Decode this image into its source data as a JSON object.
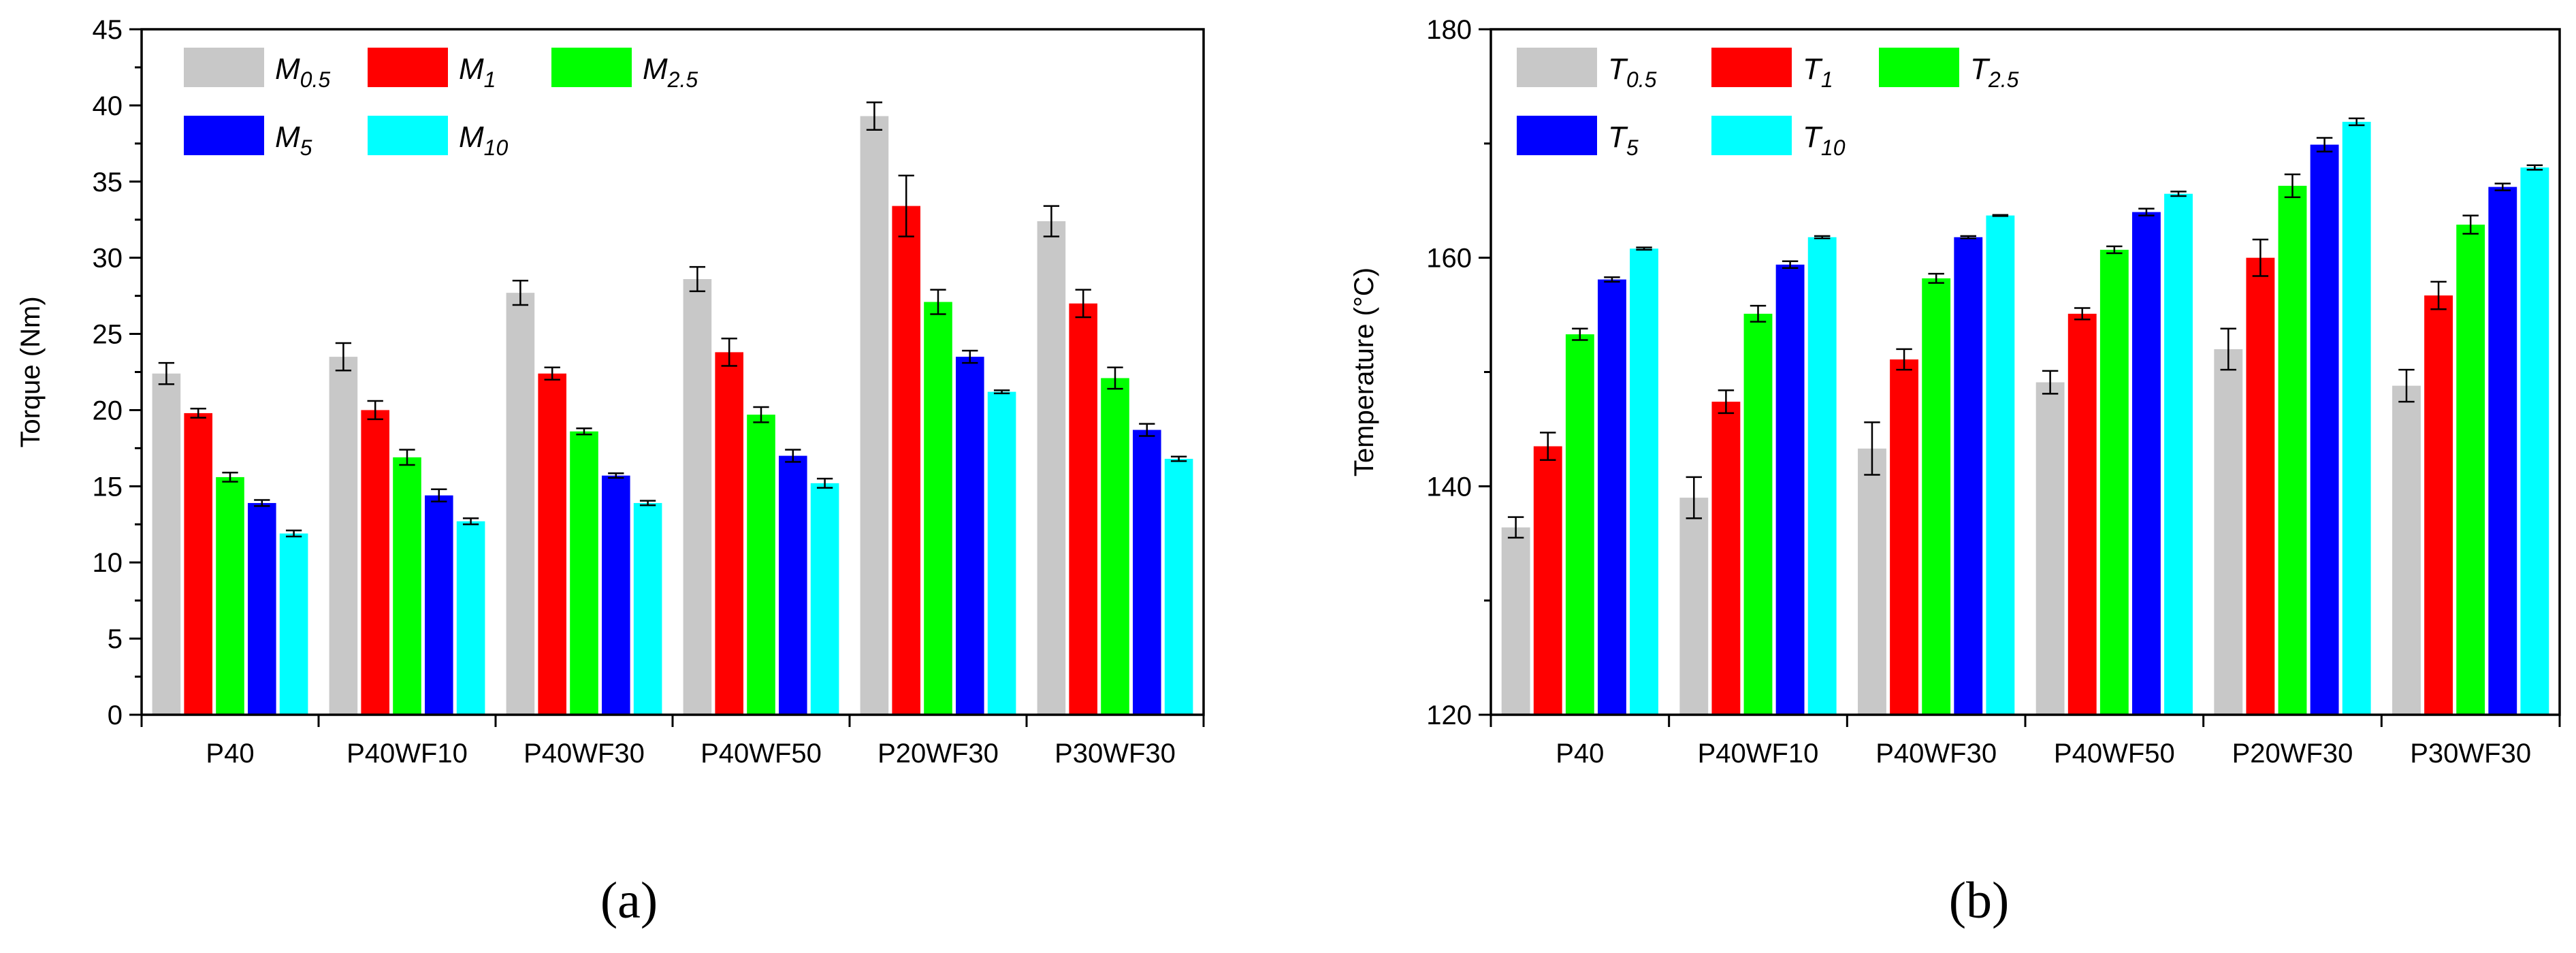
{
  "figure": {
    "panel_a_caption": "(a)",
    "panel_b_caption": "(b)"
  },
  "colors": {
    "s1": "#c8c8c8",
    "s2": "#ff0000",
    "s3": "#00ff00",
    "s4": "#0000ff",
    "s5": "#00ffff"
  },
  "chart_data": [
    {
      "type": "bar",
      "panel": "a",
      "title": "",
      "xlabel": "",
      "ylabel": "Torque (Nm)",
      "ylim": [
        0,
        45
      ],
      "yticks": [
        0,
        5,
        10,
        15,
        20,
        25,
        30,
        35,
        40,
        45
      ],
      "categories": [
        "P40",
        "P40WF10",
        "P40WF30",
        "P40WF50",
        "P20WF30",
        "P30WF30"
      ],
      "legend_position": "top-left",
      "series": [
        {
          "name": "M",
          "sub": "0.5",
          "values": [
            22.4,
            23.5,
            27.7,
            28.6,
            39.3,
            32.4
          ],
          "errors": [
            0.7,
            0.9,
            0.8,
            0.8,
            0.9,
            1.0
          ]
        },
        {
          "name": "M",
          "sub": "1",
          "values": [
            19.8,
            20.0,
            22.4,
            23.8,
            33.4,
            27.0
          ],
          "errors": [
            0.3,
            0.6,
            0.4,
            0.9,
            2.0,
            0.9
          ]
        },
        {
          "name": "M",
          "sub": "2.5",
          "values": [
            15.6,
            16.9,
            18.6,
            19.7,
            27.1,
            22.1
          ],
          "errors": [
            0.3,
            0.5,
            0.2,
            0.5,
            0.8,
            0.7
          ]
        },
        {
          "name": "M",
          "sub": "5",
          "values": [
            13.9,
            14.4,
            15.7,
            17.0,
            23.5,
            18.7
          ],
          "errors": [
            0.2,
            0.4,
            0.15,
            0.4,
            0.4,
            0.4
          ]
        },
        {
          "name": "M",
          "sub": "10",
          "values": [
            11.9,
            12.7,
            13.9,
            15.2,
            21.2,
            16.8
          ],
          "errors": [
            0.2,
            0.2,
            0.15,
            0.3,
            0.1,
            0.15
          ]
        }
      ]
    },
    {
      "type": "bar",
      "panel": "b",
      "title": "",
      "xlabel": "",
      "ylabel": "Temperature (°C)",
      "ylim": [
        120,
        180
      ],
      "yticks": [
        120,
        140,
        160,
        180
      ],
      "categories": [
        "P40",
        "P40WF10",
        "P40WF30",
        "P40WF50",
        "P20WF30",
        "P30WF30"
      ],
      "legend_position": "top-left",
      "series": [
        {
          "name": "T",
          "sub": "0.5",
          "values": [
            136.4,
            139.0,
            143.3,
            149.1,
            152.0,
            148.8
          ],
          "errors": [
            0.9,
            1.8,
            2.3,
            1.0,
            1.8,
            1.4
          ]
        },
        {
          "name": "T",
          "sub": "1",
          "values": [
            143.5,
            147.4,
            151.1,
            155.1,
            160.0,
            156.7
          ],
          "errors": [
            1.2,
            1.0,
            0.9,
            0.5,
            1.6,
            1.2
          ]
        },
        {
          "name": "T",
          "sub": "2.5",
          "values": [
            153.3,
            155.1,
            158.2,
            160.7,
            166.3,
            162.9
          ],
          "errors": [
            0.5,
            0.7,
            0.4,
            0.3,
            1.0,
            0.8
          ]
        },
        {
          "name": "T",
          "sub": "5",
          "values": [
            158.1,
            159.4,
            161.8,
            164.0,
            169.9,
            166.2
          ],
          "errors": [
            0.2,
            0.3,
            0.1,
            0.3,
            0.6,
            0.3
          ]
        },
        {
          "name": "T",
          "sub": "10",
          "values": [
            160.8,
            161.8,
            163.7,
            165.6,
            171.9,
            167.9
          ],
          "errors": [
            0.1,
            0.1,
            0.05,
            0.2,
            0.3,
            0.2
          ]
        }
      ]
    }
  ]
}
